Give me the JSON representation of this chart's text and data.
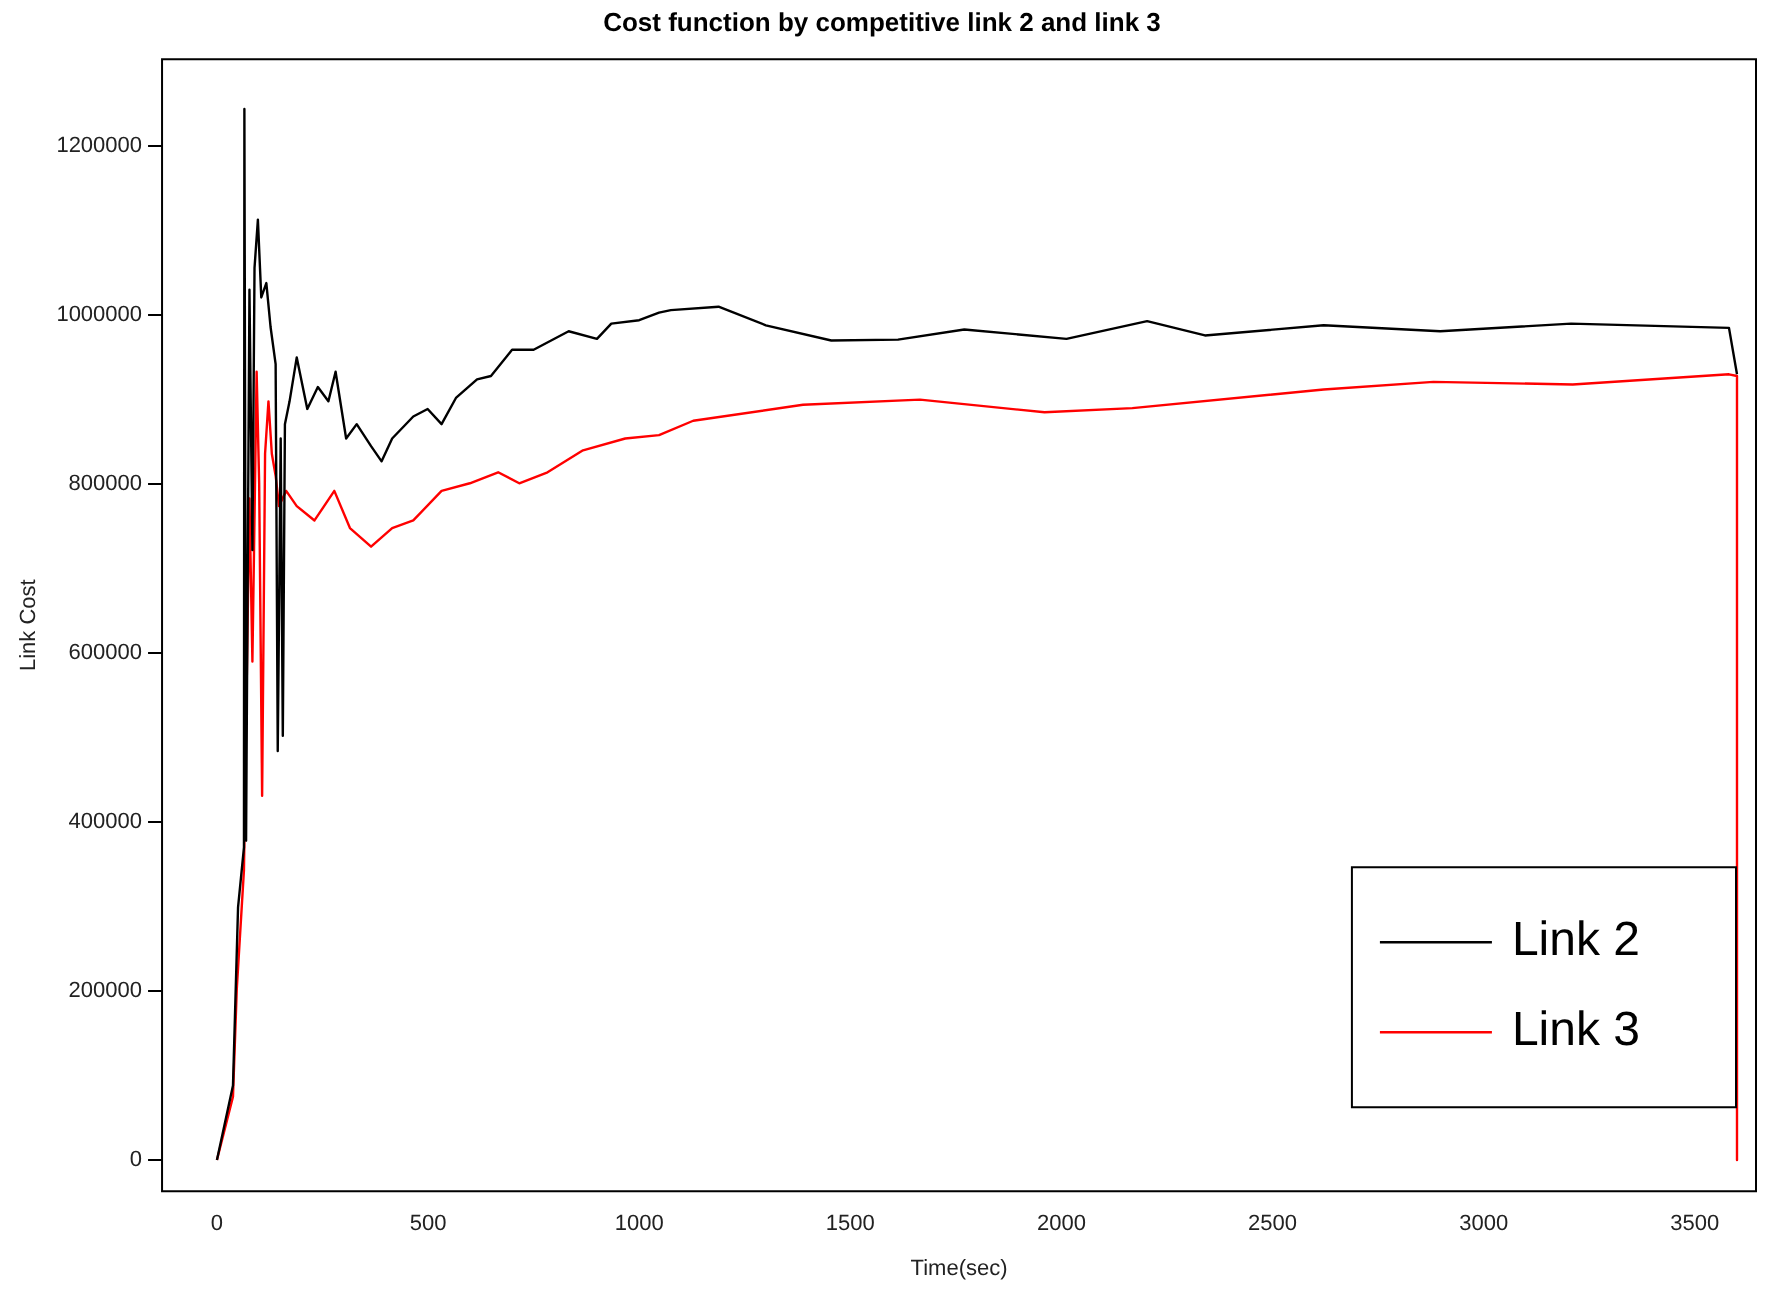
{
  "chart_data": {
    "type": "line",
    "title": "Cost function by competitive link 2 and link 3",
    "xlabel": "Time(sec)",
    "ylabel": "Link Cost",
    "xlim": [
      -130,
      3645
    ],
    "ylim": [
      -37000,
      1303000
    ],
    "xticks": [
      0,
      500,
      1000,
      1500,
      2000,
      2500,
      3000,
      3500
    ],
    "yticks": [
      0,
      200000,
      400000,
      600000,
      800000,
      1000000,
      1200000
    ],
    "grid": false,
    "legend": "bottom right",
    "marker": "none",
    "line_style": "solid",
    "series": [
      {
        "name": "Link 2",
        "color": "#000000",
        "x": [
          0,
          38,
          50,
          64,
          65,
          69,
          77,
          84,
          89,
          97,
          105,
          117,
          127,
          139,
          144,
          151,
          156,
          161,
          172,
          189,
          214,
          239,
          264,
          281,
          306,
          331,
          365,
          390,
          415,
          465,
          499,
          532,
          566,
          616,
          649,
          699,
          750,
          833,
          900,
          934,
          1000,
          1047,
          1075,
          1188,
          1300,
          1455,
          1613,
          1770,
          2012,
          2203,
          2340,
          2621,
          2897,
          3207,
          3581,
          3600
        ],
        "values": [
          0,
          88000,
          299000,
          370000,
          1244000,
          378000,
          1030000,
          722000,
          1056000,
          1113000,
          1021000,
          1038000,
          986000,
          942000,
          484000,
          854000,
          502000,
          871000,
          898000,
          950000,
          889000,
          915000,
          898000,
          933000,
          854000,
          871000,
          845000,
          827000,
          854000,
          880000,
          889000,
          871000,
          902000,
          924000,
          928000,
          959000,
          959000,
          981000,
          972000,
          990000,
          994000,
          1003000,
          1006000,
          1010000,
          988000,
          970000,
          971000,
          983000,
          972000,
          993000,
          976000,
          988000,
          981000,
          990000,
          985000,
          930000
        ]
      },
      {
        "name": "Link 3",
        "color": "#ff0000",
        "x": [
          0,
          38,
          47,
          64,
          77,
          84,
          94,
          100,
          107,
          114,
          122,
          130,
          139,
          147,
          164,
          189,
          231,
          278,
          315,
          365,
          415,
          465,
          532,
          599,
          666,
          716,
          783,
          867,
          967,
          1047,
          1128,
          1388,
          1665,
          1960,
          2168,
          2621,
          2881,
          3211,
          3581,
          3600,
          3600
        ],
        "values": [
          0,
          75000,
          202000,
          343000,
          783000,
          590000,
          933000,
          801000,
          431000,
          836000,
          898000,
          836000,
          810000,
          774000,
          792000,
          774000,
          757000,
          792000,
          748000,
          726000,
          748000,
          757000,
          792000,
          801000,
          814000,
          801000,
          814000,
          840000,
          854000,
          858000,
          875000,
          894000,
          900000,
          885000,
          890000,
          912000,
          921000,
          918000,
          930000,
          928000,
          0
        ]
      }
    ]
  }
}
